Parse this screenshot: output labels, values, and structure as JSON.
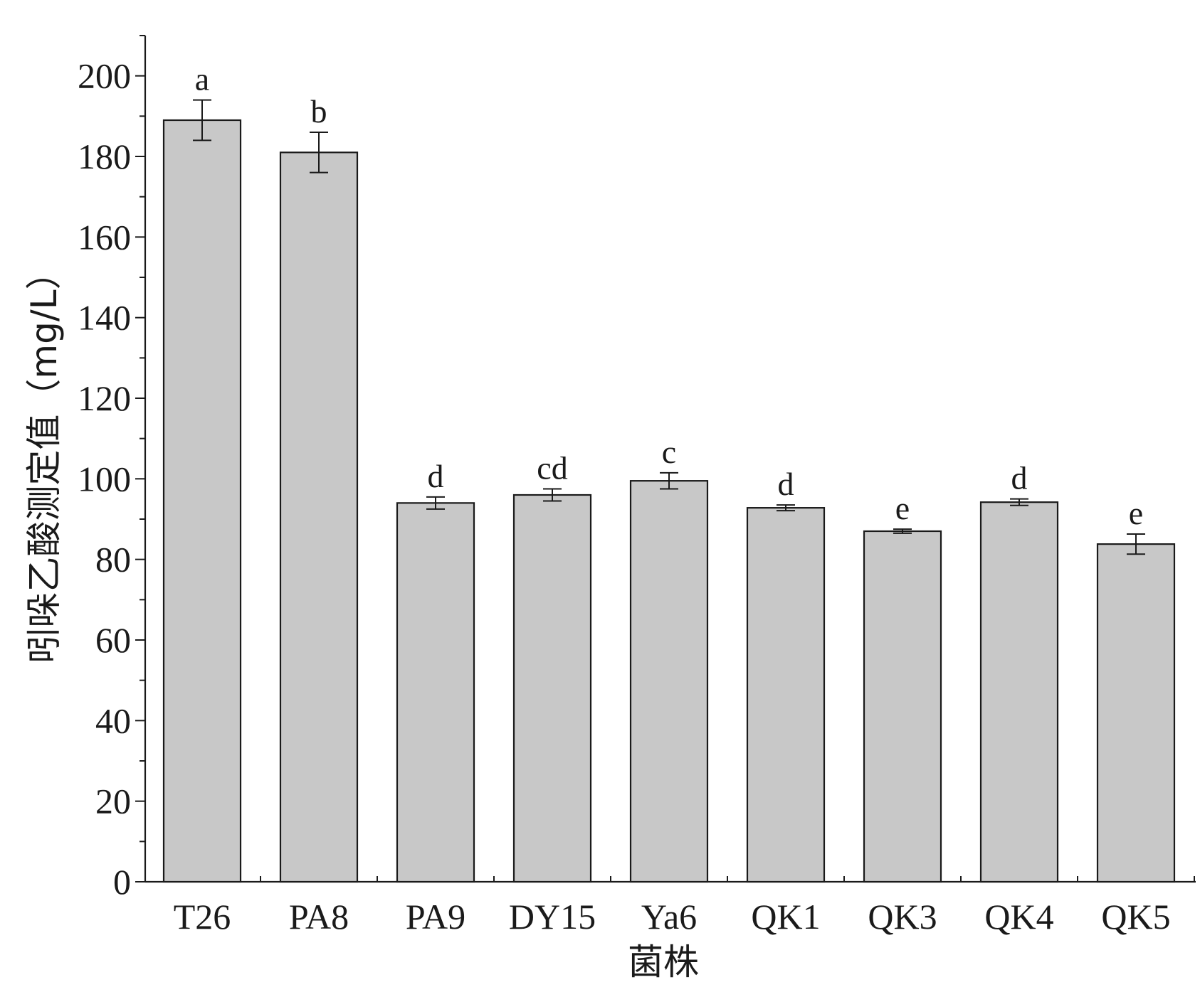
{
  "chart_data": {
    "type": "bar",
    "xlabel": "菌株",
    "ylabel": "吲哚乙酸测定值（mg/L）",
    "ylim": [
      0,
      210
    ],
    "yticks": [
      0,
      20,
      40,
      60,
      80,
      100,
      120,
      140,
      160,
      180,
      200
    ],
    "ytick_labels": [
      "0",
      "20",
      "40",
      "60",
      "80",
      "100",
      "120",
      "140",
      "160",
      "180",
      "200"
    ],
    "categories": [
      "T26",
      "PA8",
      "PA9",
      "DY15",
      "Ya6",
      "QK1",
      "QK3",
      "QK4",
      "QK5"
    ],
    "values": [
      189,
      181,
      94,
      96,
      99.5,
      92.8,
      87,
      94.2,
      83.8
    ],
    "errors": [
      5,
      5,
      1.5,
      1.5,
      2,
      0.7,
      0.5,
      0.8,
      2.5
    ],
    "significance": [
      "a",
      "b",
      "d",
      "cd",
      "c",
      "d",
      "e",
      "d",
      "e"
    ],
    "bar_color": "#c8c8c8",
    "edge_color": "#1a1a1a",
    "grid": false,
    "legend": "none"
  }
}
